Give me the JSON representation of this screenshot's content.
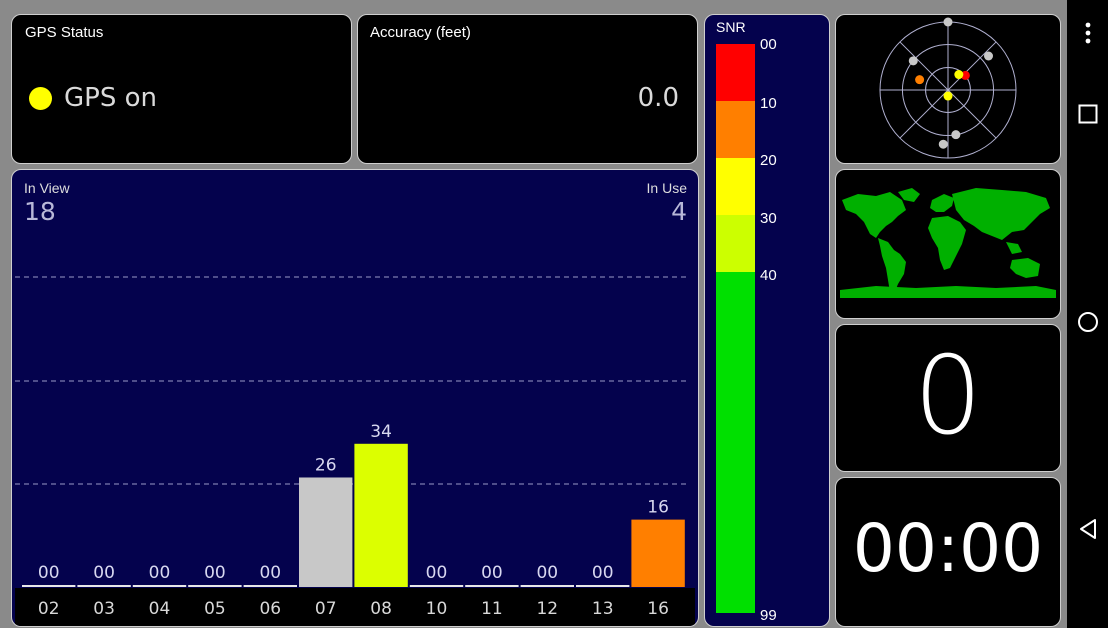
{
  "gps_status": {
    "title": "GPS Status",
    "value": "GPS on",
    "indicator_color": "#ffff00"
  },
  "accuracy": {
    "title": "Accuracy (feet)",
    "value": "0.0"
  },
  "satellites": {
    "in_view_label": "In View",
    "in_view_count": "18",
    "in_use_label": "In Use",
    "in_use_count": "4"
  },
  "chart_data": {
    "type": "bar",
    "categories": [
      "02",
      "03",
      "04",
      "05",
      "06",
      "07",
      "08",
      "10",
      "11",
      "12",
      "13",
      "16"
    ],
    "values": [
      0,
      0,
      0,
      0,
      0,
      26,
      34,
      0,
      0,
      0,
      0,
      16
    ],
    "value_labels": [
      "00",
      "00",
      "00",
      "00",
      "00",
      "26",
      "34",
      "00",
      "00",
      "00",
      "00",
      "16"
    ],
    "bar_colors": [
      "#e8e8e8",
      "#e8e8e8",
      "#e8e8e8",
      "#e8e8e8",
      "#e8e8e8",
      "#c8c8c8",
      "#dcff00",
      "#e8e8e8",
      "#e8e8e8",
      "#e8e8e8",
      "#e8e8e8",
      "#ff7f00"
    ],
    "ylim": [
      0,
      99
    ],
    "grid": "dashed"
  },
  "snr_scale": {
    "title": "SNR",
    "ticks": [
      "00",
      "10",
      "20",
      "30",
      "40",
      "99"
    ],
    "colors": [
      "#ff0000",
      "#ff7f00",
      "#ffff00",
      "#ccff00",
      "#00e000"
    ]
  },
  "radar": {
    "satellites": [
      {
        "az": 0,
        "el": 0,
        "color": "#c8c8c8"
      },
      {
        "az": 310,
        "el": 30,
        "color": "#c8c8c8"
      },
      {
        "az": 50,
        "el": 20,
        "color": "#c8c8c8"
      },
      {
        "az": 290,
        "el": 50,
        "color": "#ff7f00"
      },
      {
        "az": 50,
        "el": 60,
        "color": "#ff0000"
      },
      {
        "az": 35,
        "el": 65,
        "color": "#ffff00"
      },
      {
        "az": 180,
        "el": 82,
        "color": "#ffff00"
      },
      {
        "az": 170,
        "el": 30,
        "color": "#c8c8c8"
      },
      {
        "az": 185,
        "el": 18,
        "color": "#c8c8c8"
      }
    ]
  },
  "speed": {
    "value": "0"
  },
  "timer": {
    "value": "00:00"
  },
  "navbar": {
    "menu_icon": "menu-dots-icon",
    "recents_icon": "square-icon",
    "home_icon": "circle-icon",
    "back_icon": "triangle-back-icon"
  }
}
